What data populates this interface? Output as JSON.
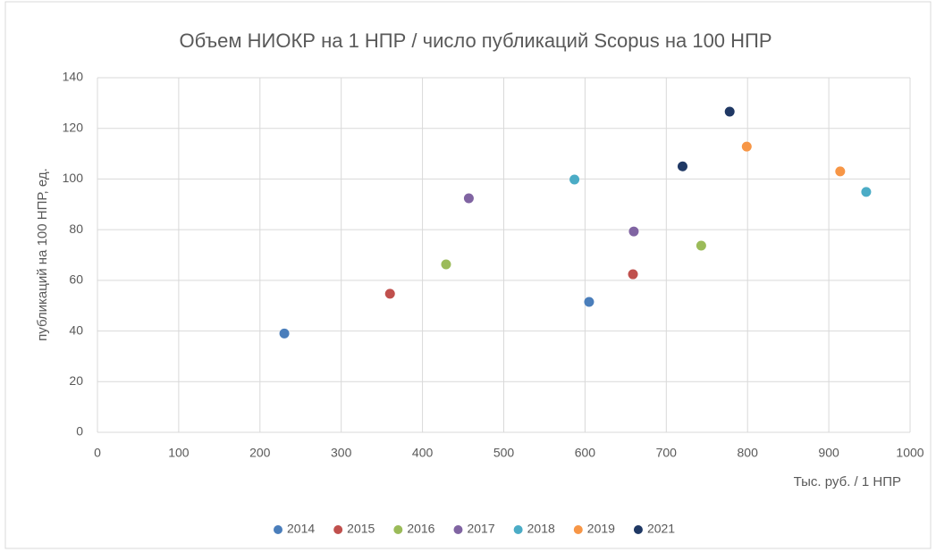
{
  "chart_data": {
    "type": "scatter",
    "title": "Объем НИОКР на 1 НПР / число публикаций Scopus на 100 НПР",
    "x_label": "Тыс. руб. / 1 НПР",
    "y_label": "публикаций на 100 НПР, ед.",
    "xlim": [
      0,
      1000
    ],
    "xticks": [
      0,
      100,
      200,
      300,
      400,
      500,
      600,
      700,
      800,
      900,
      1000
    ],
    "ylim": [
      0,
      140
    ],
    "yticks": [
      0,
      20,
      40,
      60,
      80,
      100,
      120,
      140
    ],
    "grid": true,
    "legend": "bottom",
    "series": [
      {
        "name": "2014",
        "color": "#4a7ebb",
        "x": [
          230,
          605
        ],
        "values": [
          39,
          51.5
        ]
      },
      {
        "name": "2015",
        "color": "#c0504d",
        "x": [
          360,
          659
        ],
        "values": [
          54.7,
          62.4
        ]
      },
      {
        "name": "2016",
        "color": "#9bbb59",
        "x": [
          429,
          743
        ],
        "values": [
          66.3,
          73.7
        ]
      },
      {
        "name": "2017",
        "color": "#8064a2",
        "x": [
          457,
          660
        ],
        "values": [
          92.4,
          79.3
        ]
      },
      {
        "name": "2018",
        "color": "#4bacc6",
        "x": [
          587,
          946
        ],
        "values": [
          99.8,
          94.9
        ]
      },
      {
        "name": "2019",
        "color": "#f79646",
        "x": [
          799,
          914
        ],
        "values": [
          112.8,
          103
        ]
      },
      {
        "name": "2021",
        "color": "#1f3864",
        "x": [
          720,
          778
        ],
        "values": [
          105,
          126.6
        ]
      }
    ]
  }
}
